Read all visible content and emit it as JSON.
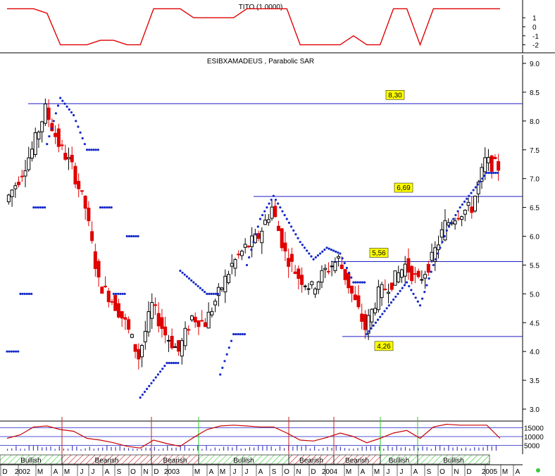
{
  "indicator": {
    "title": "TITO (1.0000)",
    "yticks": [
      "1",
      "0",
      "-1",
      "-2"
    ],
    "x": [
      "2001-12",
      "2002-01",
      "2002-02",
      "2002-03",
      "2002-04",
      "2002-05",
      "2002-06",
      "2002-07",
      "2002-08",
      "2002-09",
      "2002-10",
      "2002-11",
      "2002-12",
      "2003-01",
      "2003-02",
      "2003-03",
      "2003-04",
      "2003-05",
      "2003-06",
      "2003-07",
      "2003-08",
      "2003-09",
      "2003-10",
      "2003-11",
      "2003-12",
      "2004-01",
      "2004-02",
      "2004-03",
      "2004-04",
      "2004-05",
      "2004-06",
      "2004-07",
      "2004-08",
      "2004-09",
      "2004-10",
      "2004-11",
      "2004-12",
      "2005-01"
    ],
    "values": [
      2,
      2,
      2,
      1.5,
      -2,
      -2,
      -2,
      -1.5,
      -1.5,
      -2,
      -2,
      2,
      2,
      2,
      1,
      1,
      1,
      1,
      2,
      2,
      2,
      2,
      -2,
      -2,
      -2,
      -2,
      -1,
      -2,
      -2,
      2,
      2,
      -2,
      2,
      2,
      2,
      2,
      2,
      2
    ]
  },
  "chart_data": {
    "type": "line",
    "title": "ESIBXAMADEUS , Parabolic SAR",
    "ylim": [
      3.0,
      9.0
    ],
    "yticks": [
      "9.0",
      "8.5",
      "8.0",
      "7.5",
      "7.0",
      "6.5",
      "6.0",
      "5.5",
      "5.0",
      "4.5",
      "4.0",
      "3.5",
      "3.0"
    ],
    "x_ticks": [
      "D",
      "2002",
      "M",
      "A",
      "M",
      "J",
      "J",
      "A",
      "S",
      "O",
      "N",
      "D",
      "2003",
      "M",
      "A",
      "M",
      "J",
      "J",
      "A",
      "S",
      "O",
      "N",
      "D",
      "2004",
      "M",
      "A",
      "M",
      "J",
      "J",
      "A",
      "S",
      "O",
      "N",
      "D",
      "2005",
      "M",
      "A"
    ],
    "series": [
      {
        "type": "candle",
        "x": [
          "2001-12",
          "2002-01",
          "2002-02",
          "2002-03",
          "2002-04",
          "2002-05",
          "2002-06",
          "2002-07",
          "2002-08",
          "2002-09",
          "2002-10",
          "2002-11",
          "2002-12",
          "2003-01",
          "2003-02",
          "2003-03",
          "2003-04",
          "2003-05",
          "2003-06",
          "2003-07",
          "2003-08",
          "2003-09",
          "2003-10",
          "2003-11",
          "2003-12",
          "2004-01",
          "2004-02",
          "2004-03",
          "2004-04",
          "2004-05",
          "2004-06",
          "2004-07",
          "2004-08",
          "2004-09",
          "2004-10",
          "2004-11",
          "2004-12",
          "2005-01"
        ],
        "values": [
          6.6,
          7.0,
          7.5,
          8.2,
          7.6,
          7.2,
          6.5,
          5.2,
          4.9,
          4.5,
          3.9,
          4.8,
          4.3,
          4.0,
          4.6,
          4.5,
          5.0,
          5.5,
          5.8,
          6.0,
          6.5,
          5.7,
          5.3,
          5.1,
          5.4,
          5.6,
          5.0,
          4.4,
          5.0,
          5.2,
          5.5,
          5.2,
          5.6,
          6.2,
          6.4,
          6.5,
          7.3,
          7.2
        ]
      },
      {
        "type": "sar",
        "x": [
          "2001-12",
          "2002-01",
          "2002-02",
          "2002-03",
          "2002-04",
          "2002-05",
          "2002-06",
          "2002-07",
          "2002-08",
          "2002-09",
          "2002-10",
          "2002-11",
          "2002-12",
          "2003-01",
          "2003-02",
          "2003-03",
          "2003-04",
          "2003-05",
          "2003-06",
          "2003-07",
          "2003-08",
          "2003-09",
          "2003-10",
          "2003-11",
          "2003-12",
          "2004-01",
          "2004-02",
          "2004-03",
          "2004-04",
          "2004-05",
          "2004-06",
          "2004-07",
          "2004-08",
          "2004-09",
          "2004-10",
          "2004-11",
          "2004-12",
          "2005-01"
        ],
        "values": [
          4.0,
          5.0,
          6.5,
          7.6,
          8.4,
          8.1,
          7.5,
          6.5,
          5.0,
          6.0,
          3.2,
          3.5,
          3.8,
          5.4,
          5.2,
          5.0,
          3.6,
          4.3,
          5.5,
          6.3,
          6.7,
          6.3,
          5.9,
          5.6,
          5.8,
          5.7,
          5.2,
          4.3,
          4.6,
          4.9,
          5.2,
          4.8,
          5.5,
          6.1,
          6.5,
          6.8,
          7.1,
          8.1
        ]
      }
    ],
    "hlines": [
      {
        "value": 8.3,
        "label": "8,30"
      },
      {
        "value": 6.69,
        "label": "6,69"
      },
      {
        "value": 5.56,
        "label": "5,56"
      },
      {
        "value": 4.26,
        "label": "4,26"
      }
    ],
    "grid": false,
    "legend": "none"
  },
  "volume": {
    "yticks": [
      "15000",
      "10000",
      "5000"
    ],
    "values": [
      9000,
      11000,
      15500,
      16000,
      14000,
      13000,
      9000,
      8000,
      6500,
      4500,
      3500,
      8000,
      6000,
      4500,
      9500,
      14000,
      16000,
      16500,
      16000,
      15500,
      15500,
      12000,
      8000,
      7500,
      9500,
      12000,
      10000,
      6500,
      9000,
      12000,
      13500,
      9000,
      15500,
      17000,
      16500,
      16500,
      16500,
      9000
    ]
  },
  "phases": [
    {
      "label": "Bullish",
      "hatch": "#3cb43c"
    },
    {
      "label": "Bearish",
      "hatch": "#c83c3c"
    },
    {
      "label": "Bearish",
      "hatch": "#c83c3c"
    },
    {
      "label": "Bullish",
      "hatch": "#3cb43c"
    },
    {
      "label": "Bearish",
      "hatch": "#c83c3c"
    },
    {
      "label": "Bearish",
      "hatch": "#c83c3c"
    },
    {
      "label": "Bullish",
      "hatch": "#3cb43c"
    },
    {
      "label": "Bullish",
      "hatch": "#3cb43c"
    }
  ],
  "colors": {
    "indicator_line": "#e00000",
    "sar_dots": "#1428c8",
    "hline": "#1e1ec8",
    "label_bg": "#ffff00",
    "bull_candle": "#000000",
    "bear_candle": "#e00000",
    "volume_line": "#c80000",
    "volume_bars": "#4040c0",
    "bullish_vline": "#2ad02a",
    "bearish_vline": "#c82020"
  }
}
